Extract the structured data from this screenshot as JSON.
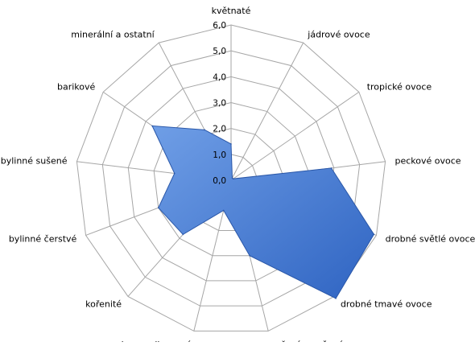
{
  "chart_data": {
    "type": "radar",
    "title": "",
    "rlim": [
      0,
      6
    ],
    "r_ticks": [
      "0,0",
      "1,0",
      "2,0",
      "3,0",
      "4,0",
      "5,0",
      "6,0"
    ],
    "grid": true,
    "legend": "none",
    "categories": [
      "květnaté",
      "jádrové ovoce",
      "tropické ovoce",
      "peckové ovoce",
      "drobné světlé ovoce",
      "drobné tmavé ovoce",
      "vařené a sušené ovoce",
      "karamelizované",
      "kořenité",
      "bylinné čerstvé",
      "bylinné sušené",
      "barikové",
      "minerální a ostatní"
    ],
    "series": [
      {
        "values": [
          1.4,
          0.1,
          0.1,
          3.9,
          5.9,
          6.1,
          3.0,
          1.2,
          2.8,
          3.0,
          2.2,
          3.7,
          2.2
        ],
        "color": "#4a7fd4"
      }
    ],
    "grid_color": "#a6a6a6"
  }
}
